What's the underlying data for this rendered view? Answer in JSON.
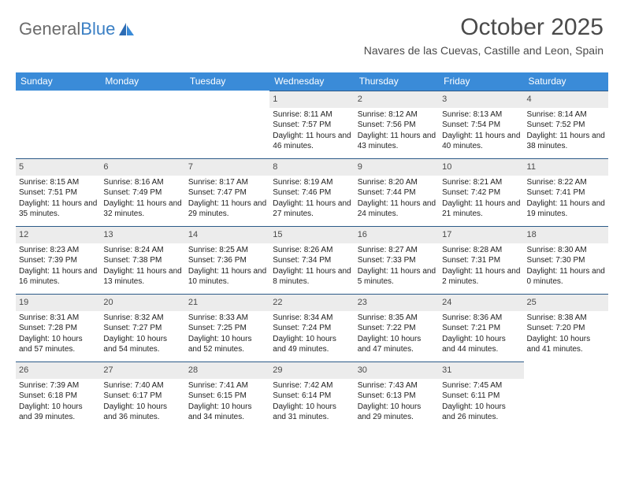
{
  "brand": {
    "part1": "General",
    "part2": "Blue"
  },
  "header": {
    "title": "October 2025",
    "subtitle": "Navares de las Cuevas, Castille and Leon, Spain"
  },
  "colors": {
    "header_bg": "#3a8bd8",
    "daynum_bg": "#ececec",
    "divider": "#2c5a88",
    "text": "#333333",
    "title": "#4a4a4a"
  },
  "daysOfWeek": [
    "Sunday",
    "Monday",
    "Tuesday",
    "Wednesday",
    "Thursday",
    "Friday",
    "Saturday"
  ],
  "weeks": [
    [
      {
        "n": "",
        "sr": "",
        "ss": "",
        "dl": ""
      },
      {
        "n": "",
        "sr": "",
        "ss": "",
        "dl": ""
      },
      {
        "n": "",
        "sr": "",
        "ss": "",
        "dl": ""
      },
      {
        "n": "1",
        "sr": "Sunrise: 8:11 AM",
        "ss": "Sunset: 7:57 PM",
        "dl": "Daylight: 11 hours and 46 minutes."
      },
      {
        "n": "2",
        "sr": "Sunrise: 8:12 AM",
        "ss": "Sunset: 7:56 PM",
        "dl": "Daylight: 11 hours and 43 minutes."
      },
      {
        "n": "3",
        "sr": "Sunrise: 8:13 AM",
        "ss": "Sunset: 7:54 PM",
        "dl": "Daylight: 11 hours and 40 minutes."
      },
      {
        "n": "4",
        "sr": "Sunrise: 8:14 AM",
        "ss": "Sunset: 7:52 PM",
        "dl": "Daylight: 11 hours and 38 minutes."
      }
    ],
    [
      {
        "n": "5",
        "sr": "Sunrise: 8:15 AM",
        "ss": "Sunset: 7:51 PM",
        "dl": "Daylight: 11 hours and 35 minutes."
      },
      {
        "n": "6",
        "sr": "Sunrise: 8:16 AM",
        "ss": "Sunset: 7:49 PM",
        "dl": "Daylight: 11 hours and 32 minutes."
      },
      {
        "n": "7",
        "sr": "Sunrise: 8:17 AM",
        "ss": "Sunset: 7:47 PM",
        "dl": "Daylight: 11 hours and 29 minutes."
      },
      {
        "n": "8",
        "sr": "Sunrise: 8:19 AM",
        "ss": "Sunset: 7:46 PM",
        "dl": "Daylight: 11 hours and 27 minutes."
      },
      {
        "n": "9",
        "sr": "Sunrise: 8:20 AM",
        "ss": "Sunset: 7:44 PM",
        "dl": "Daylight: 11 hours and 24 minutes."
      },
      {
        "n": "10",
        "sr": "Sunrise: 8:21 AM",
        "ss": "Sunset: 7:42 PM",
        "dl": "Daylight: 11 hours and 21 minutes."
      },
      {
        "n": "11",
        "sr": "Sunrise: 8:22 AM",
        "ss": "Sunset: 7:41 PM",
        "dl": "Daylight: 11 hours and 19 minutes."
      }
    ],
    [
      {
        "n": "12",
        "sr": "Sunrise: 8:23 AM",
        "ss": "Sunset: 7:39 PM",
        "dl": "Daylight: 11 hours and 16 minutes."
      },
      {
        "n": "13",
        "sr": "Sunrise: 8:24 AM",
        "ss": "Sunset: 7:38 PM",
        "dl": "Daylight: 11 hours and 13 minutes."
      },
      {
        "n": "14",
        "sr": "Sunrise: 8:25 AM",
        "ss": "Sunset: 7:36 PM",
        "dl": "Daylight: 11 hours and 10 minutes."
      },
      {
        "n": "15",
        "sr": "Sunrise: 8:26 AM",
        "ss": "Sunset: 7:34 PM",
        "dl": "Daylight: 11 hours and 8 minutes."
      },
      {
        "n": "16",
        "sr": "Sunrise: 8:27 AM",
        "ss": "Sunset: 7:33 PM",
        "dl": "Daylight: 11 hours and 5 minutes."
      },
      {
        "n": "17",
        "sr": "Sunrise: 8:28 AM",
        "ss": "Sunset: 7:31 PM",
        "dl": "Daylight: 11 hours and 2 minutes."
      },
      {
        "n": "18",
        "sr": "Sunrise: 8:30 AM",
        "ss": "Sunset: 7:30 PM",
        "dl": "Daylight: 11 hours and 0 minutes."
      }
    ],
    [
      {
        "n": "19",
        "sr": "Sunrise: 8:31 AM",
        "ss": "Sunset: 7:28 PM",
        "dl": "Daylight: 10 hours and 57 minutes."
      },
      {
        "n": "20",
        "sr": "Sunrise: 8:32 AM",
        "ss": "Sunset: 7:27 PM",
        "dl": "Daylight: 10 hours and 54 minutes."
      },
      {
        "n": "21",
        "sr": "Sunrise: 8:33 AM",
        "ss": "Sunset: 7:25 PM",
        "dl": "Daylight: 10 hours and 52 minutes."
      },
      {
        "n": "22",
        "sr": "Sunrise: 8:34 AM",
        "ss": "Sunset: 7:24 PM",
        "dl": "Daylight: 10 hours and 49 minutes."
      },
      {
        "n": "23",
        "sr": "Sunrise: 8:35 AM",
        "ss": "Sunset: 7:22 PM",
        "dl": "Daylight: 10 hours and 47 minutes."
      },
      {
        "n": "24",
        "sr": "Sunrise: 8:36 AM",
        "ss": "Sunset: 7:21 PM",
        "dl": "Daylight: 10 hours and 44 minutes."
      },
      {
        "n": "25",
        "sr": "Sunrise: 8:38 AM",
        "ss": "Sunset: 7:20 PM",
        "dl": "Daylight: 10 hours and 41 minutes."
      }
    ],
    [
      {
        "n": "26",
        "sr": "Sunrise: 7:39 AM",
        "ss": "Sunset: 6:18 PM",
        "dl": "Daylight: 10 hours and 39 minutes."
      },
      {
        "n": "27",
        "sr": "Sunrise: 7:40 AM",
        "ss": "Sunset: 6:17 PM",
        "dl": "Daylight: 10 hours and 36 minutes."
      },
      {
        "n": "28",
        "sr": "Sunrise: 7:41 AM",
        "ss": "Sunset: 6:15 PM",
        "dl": "Daylight: 10 hours and 34 minutes."
      },
      {
        "n": "29",
        "sr": "Sunrise: 7:42 AM",
        "ss": "Sunset: 6:14 PM",
        "dl": "Daylight: 10 hours and 31 minutes."
      },
      {
        "n": "30",
        "sr": "Sunrise: 7:43 AM",
        "ss": "Sunset: 6:13 PM",
        "dl": "Daylight: 10 hours and 29 minutes."
      },
      {
        "n": "31",
        "sr": "Sunrise: 7:45 AM",
        "ss": "Sunset: 6:11 PM",
        "dl": "Daylight: 10 hours and 26 minutes."
      },
      {
        "n": "",
        "sr": "",
        "ss": "",
        "dl": ""
      }
    ]
  ]
}
